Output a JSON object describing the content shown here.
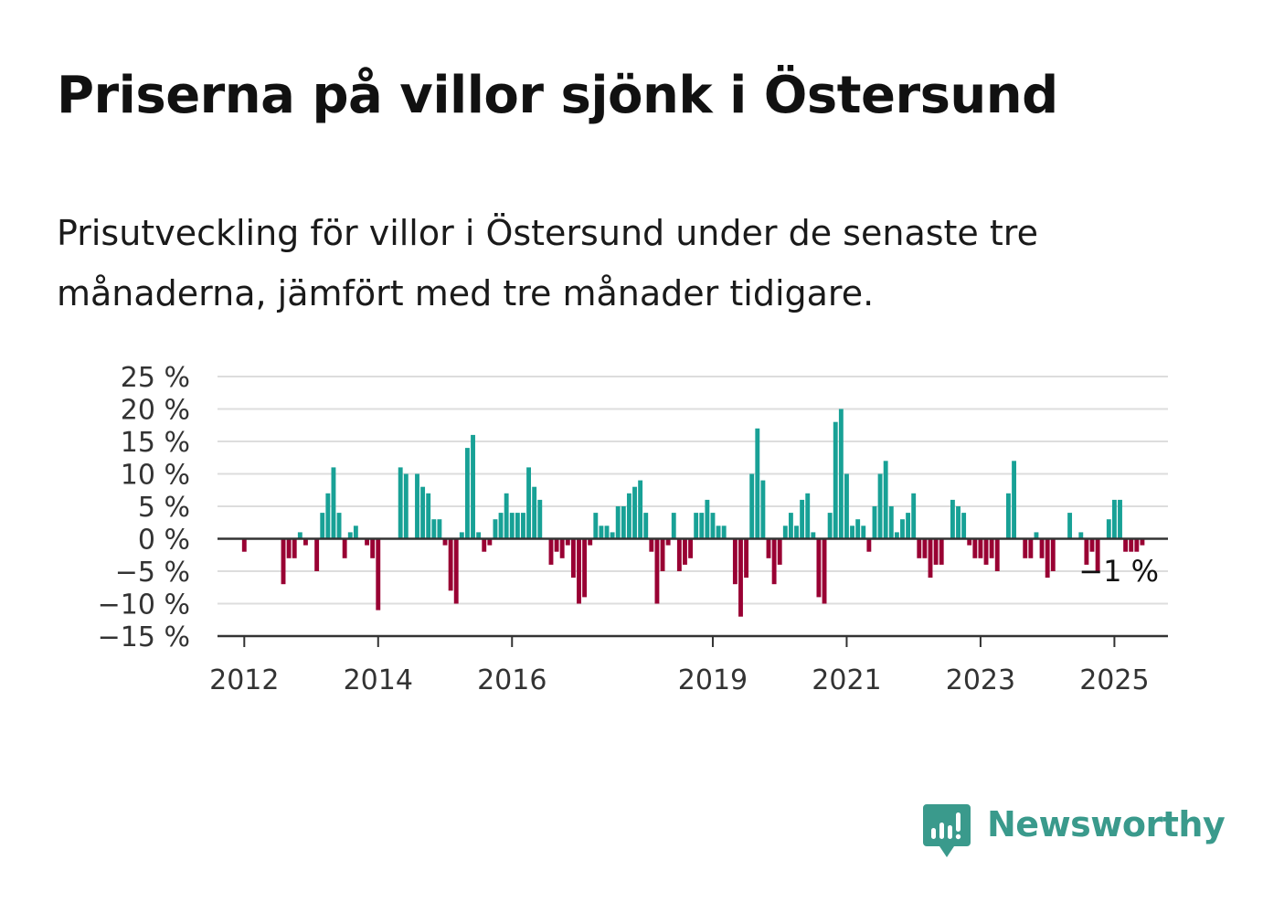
{
  "header": {
    "title": "Priserna på villor sjönk i Östersund",
    "subtitle": "Prisutveckling för villor i Östersund under de senaste tre månaderna, jämfört med tre månader tidigare."
  },
  "colors": {
    "positive": "#18a196",
    "negative": "#990033",
    "grid": "#dddddd",
    "axis": "#333333",
    "brand": "#3a9a8c"
  },
  "branding": {
    "name": "Newsworthy",
    "icon": "newsworthy-logo-icon"
  },
  "chart_data": {
    "type": "bar",
    "title": "Priserna på villor sjönk i Östersund",
    "xlabel": "",
    "ylabel": "",
    "ylim": [
      -15,
      25
    ],
    "xlim": [
      2011.6,
      2025.8
    ],
    "grid": true,
    "legend": "none",
    "y_ticks": [
      -15,
      -10,
      -5,
      0,
      5,
      10,
      15,
      20,
      25
    ],
    "y_tick_labels": [
      "−15 %",
      "−10 %",
      "−5 %",
      "0 %",
      "5 %",
      "10 %",
      "15 %",
      "20 %",
      "25 %"
    ],
    "x_ticks": [
      2012,
      2014,
      2016,
      2019,
      2021,
      2023,
      2025
    ],
    "x_tick_labels": [
      "2012",
      "2014",
      "2016",
      "2019",
      "2021",
      "2023",
      "2025"
    ],
    "annotation": {
      "text": "−1 %",
      "x": 2025,
      "y": -1
    },
    "series": [
      {
        "start": 2012,
        "step_months": 1,
        "values": [
          -2,
          0,
          0,
          0,
          0,
          0,
          0,
          -7,
          -3,
          -3,
          1,
          -1,
          0,
          -5,
          4,
          7,
          11,
          4,
          -3,
          1,
          2,
          0,
          -1,
          -3,
          -11,
          0,
          0,
          0,
          11,
          10,
          0,
          10,
          8,
          7,
          3,
          3,
          -1,
          -8,
          -10,
          1,
          14,
          16,
          1,
          -2,
          -1,
          3,
          4,
          7,
          4,
          4,
          4,
          11,
          8,
          6,
          0,
          -4,
          -2,
          -3,
          -1,
          -6,
          -10,
          -9,
          -1,
          4,
          2,
          2,
          1,
          5,
          5,
          7,
          8,
          9,
          4,
          -2,
          -10,
          -5,
          -1,
          4,
          -5,
          -4,
          -3,
          4,
          4,
          6,
          4,
          2,
          2,
          0,
          -7,
          -12,
          -6,
          10,
          17,
          9,
          -3,
          -7,
          -4,
          2,
          4,
          2,
          6,
          7,
          1,
          -9,
          -10,
          4,
          18,
          20,
          10,
          2,
          3,
          2,
          -2,
          5,
          10,
          12,
          5,
          1,
          3,
          4,
          7,
          -3,
          -3,
          -6,
          -4,
          -4,
          0,
          6,
          5,
          4,
          -1,
          -3,
          -3,
          -4,
          -3,
          -5,
          0,
          7,
          12,
          0,
          -3,
          -3,
          1,
          -3,
          -6,
          -5,
          0,
          0,
          4,
          0,
          1,
          -4,
          -2,
          -5,
          0,
          3,
          6,
          6,
          -2,
          -2,
          -2,
          -1
        ]
      }
    ]
  }
}
